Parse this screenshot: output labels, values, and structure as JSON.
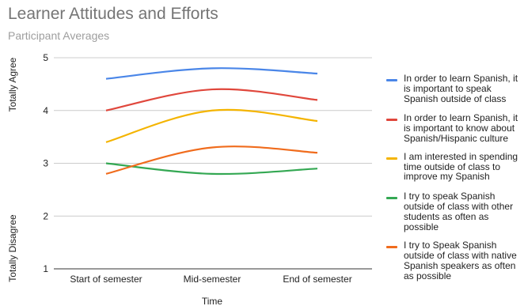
{
  "chart_data": {
    "type": "line",
    "title": "Learner Attitudes and Efforts",
    "subtitle": "Participant Averages",
    "xlabel": "Time",
    "ylabel_top": "Totally Agree",
    "ylabel_bottom": "Totally Disagree",
    "categories": [
      "Start of semester",
      "Mid-semester",
      "End of semester"
    ],
    "ylim": [
      1,
      5
    ],
    "yticks": [
      "1",
      "2",
      "3",
      "4",
      "5"
    ],
    "grid": true,
    "legend_position": "right",
    "series": [
      {
        "name": "In order to learn Spanish, it is important to speak Spanish outside of class",
        "color": "#4a86e8",
        "values": [
          4.6,
          4.8,
          4.7
        ]
      },
      {
        "name": "In order to learn Spanish, it is important to know about Spanish/Hispanic culture",
        "color": "#e0473c",
        "values": [
          4.0,
          4.4,
          4.2
        ]
      },
      {
        "name": "I am interested in spending time outside of class to improve my Spanish",
        "color": "#f4b400",
        "values": [
          3.4,
          4.0,
          3.8
        ]
      },
      {
        "name": "I try to speak Spanish outside of class with other students as often as possible",
        "color": "#34a853",
        "values": [
          3.0,
          2.8,
          2.9
        ]
      },
      {
        "name": "I try to Speak Spanish outside of class with native Spanish speakers as often as possible",
        "color": "#f06c1d",
        "values": [
          2.8,
          3.3,
          3.2
        ]
      }
    ]
  }
}
